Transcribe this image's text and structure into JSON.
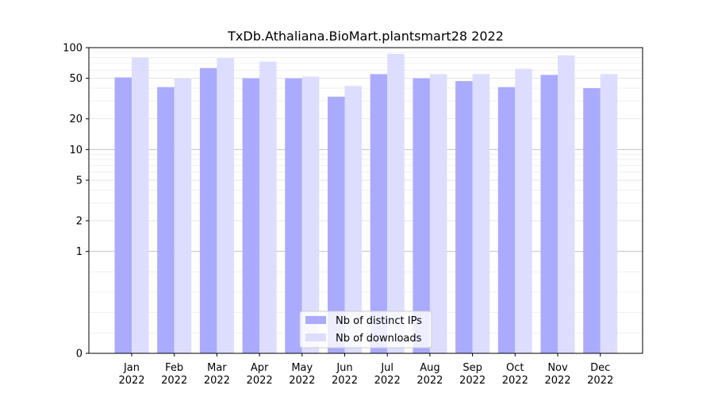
{
  "chart_data": {
    "type": "bar",
    "title": "TxDb.Athaliana.BioMart.plantsmart28 2022",
    "xlabel": "",
    "ylabel": "",
    "y_scale": "symlog",
    "ylim": [
      0,
      100
    ],
    "y_ticks": [
      {
        "value": 0,
        "label": "0"
      },
      {
        "value": 1,
        "label": "1"
      },
      {
        "value": 2,
        "label": "2"
      },
      {
        "value": 5,
        "label": "5"
      },
      {
        "value": 10,
        "label": "10"
      },
      {
        "value": 20,
        "label": "20"
      },
      {
        "value": 50,
        "label": "50"
      },
      {
        "value": 100,
        "label": "100"
      }
    ],
    "grid": true,
    "legend_position": "bottom-center",
    "categories": [
      {
        "month": "Jan",
        "year": "2022"
      },
      {
        "month": "Feb",
        "year": "2022"
      },
      {
        "month": "Mar",
        "year": "2022"
      },
      {
        "month": "Apr",
        "year": "2022"
      },
      {
        "month": "May",
        "year": "2022"
      },
      {
        "month": "Jun",
        "year": "2022"
      },
      {
        "month": "Jul",
        "year": "2022"
      },
      {
        "month": "Aug",
        "year": "2022"
      },
      {
        "month": "Sep",
        "year": "2022"
      },
      {
        "month": "Oct",
        "year": "2022"
      },
      {
        "month": "Nov",
        "year": "2022"
      },
      {
        "month": "Dec",
        "year": "2022"
      }
    ],
    "series": [
      {
        "name": "Nb of distinct IPs",
        "color": "#aaaaff",
        "values": [
          51,
          41,
          63,
          50,
          50,
          33,
          55,
          50,
          47,
          41,
          54,
          40
        ]
      },
      {
        "name": "Nb of downloads",
        "color": "#ddddff",
        "values": [
          80,
          50,
          79,
          73,
          52,
          42,
          87,
          55,
          55,
          62,
          84,
          55
        ]
      }
    ]
  }
}
